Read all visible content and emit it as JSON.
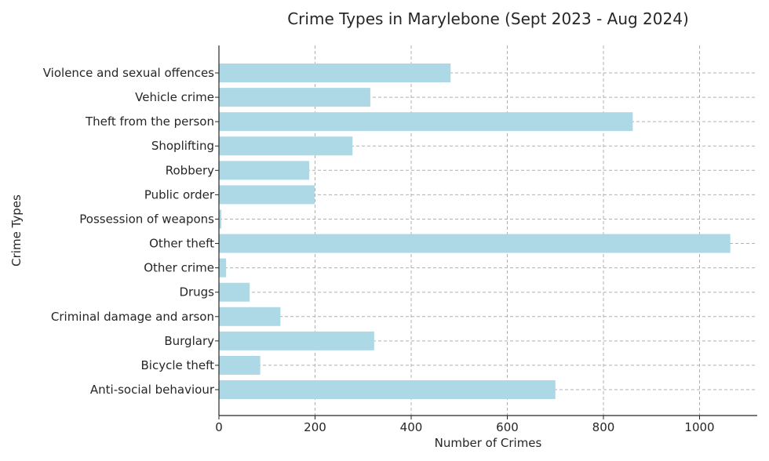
{
  "chart_data": {
    "type": "bar",
    "orientation": "horizontal",
    "title": "Crime Types in Marylebone (Sept 2023 - Aug 2024)",
    "xlabel": "Number of Crimes",
    "ylabel": "Crime Types",
    "xlim": [
      0,
      1120
    ],
    "xticks": [
      0,
      200,
      400,
      600,
      800,
      1000
    ],
    "grid": true,
    "bar_color": "#add8e6",
    "categories": [
      "Anti-social behaviour",
      "Bicycle theft",
      "Burglary",
      "Criminal damage and arson",
      "Drugs",
      "Other crime",
      "Other theft",
      "Possession of weapons",
      "Public order",
      "Robbery",
      "Shoplifting",
      "Theft from the person",
      "Vehicle crime",
      "Violence and sexual offences"
    ],
    "values": [
      700,
      86,
      323,
      128,
      64,
      15,
      1064,
      5,
      199,
      188,
      278,
      861,
      315,
      482
    ]
  }
}
